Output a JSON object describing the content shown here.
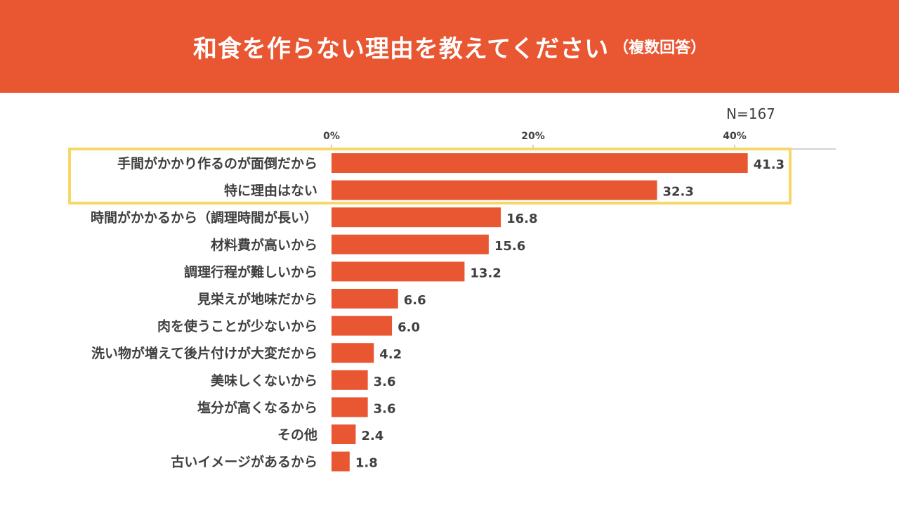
{
  "header": {
    "title": "和食を作らない理由を教えてください",
    "subtitle": "（複数回答）",
    "background": "#E85632"
  },
  "n_label": "N=167",
  "highlight": {
    "color": "#F7D766",
    "rows": [
      0,
      1
    ]
  },
  "chart_data": {
    "type": "bar",
    "orientation": "horizontal",
    "categories": [
      "手間がかかり作るのが面倒だから",
      "特に理由はない",
      "時間がかかるから（調理時間が長い）",
      "材料費が高いから",
      "調理行程が難しいから",
      "見栄えが地味だから",
      "肉を使うことが少ないから",
      "洗い物が増えて後片付けが大変だから",
      "美味しくないから",
      "塩分が高くなるから",
      "その他",
      "古いイメージがあるから"
    ],
    "values": [
      41.3,
      32.3,
      16.8,
      15.6,
      13.2,
      6.6,
      6.0,
      4.2,
      3.6,
      3.6,
      2.4,
      1.8
    ],
    "value_labels": [
      "41.3",
      "32.3",
      "16.8",
      "15.6",
      "13.2",
      "6.6",
      "6.0",
      "4.2",
      "3.6",
      "3.6",
      "2.4",
      "1.8"
    ],
    "xticks": [
      0,
      20,
      40
    ],
    "xtick_labels": [
      "0%",
      "20%",
      "40%"
    ],
    "xlim": [
      0,
      50
    ],
    "axis_position": "top",
    "grid": false,
    "bar_color": "#E85632"
  }
}
